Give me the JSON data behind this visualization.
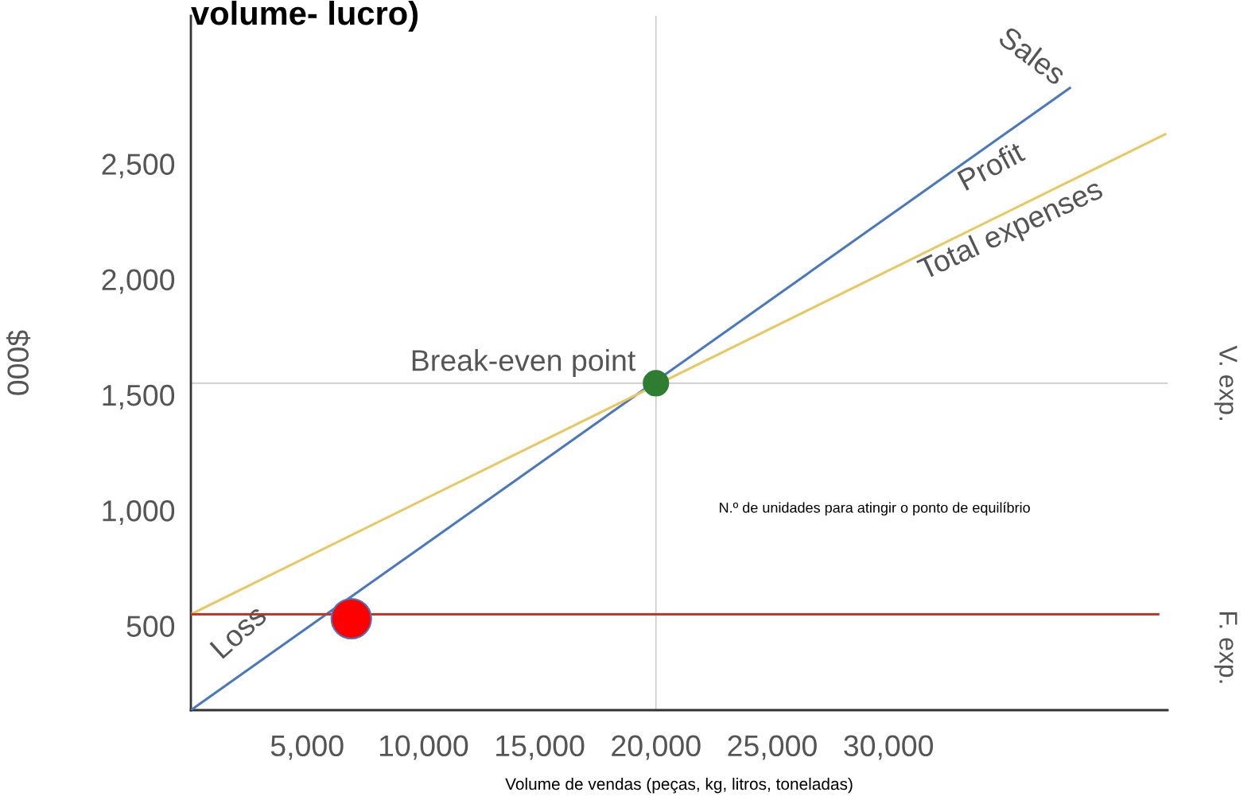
{
  "chart_data": {
    "type": "line",
    "title": "volume- lucro)",
    "xlabel": "Volume de vendas (peças, kg, litros, toneladas)",
    "ylabel": "000$",
    "xlim": [
      0,
      42000
    ],
    "ylim": [
      135,
      3140
    ],
    "xticks": [
      {
        "value": 5000,
        "label": "5,000"
      },
      {
        "value": 10000,
        "label": "10,000"
      },
      {
        "value": 15000,
        "label": "15,000"
      },
      {
        "value": 20000,
        "label": "20,000"
      },
      {
        "value": 25000,
        "label": "25,000"
      },
      {
        "value": 30000,
        "label": "30,000"
      }
    ],
    "yticks": [
      {
        "value": 500,
        "label": "500"
      },
      {
        "value": 1000,
        "label": "1,000"
      },
      {
        "value": 1500,
        "label": "1,500"
      },
      {
        "value": 2000,
        "label": "2,000"
      },
      {
        "value": 2500,
        "label": "2,500"
      }
    ],
    "grid": false,
    "line_style": "solid",
    "series": [
      {
        "color": "#4a78c0",
        "marker": "none",
        "x": [
          0,
          37800
        ],
        "values": [
          135,
          2828
        ]
      },
      {
        "color": "#e8c860",
        "marker": "none",
        "x": [
          0,
          41900
        ],
        "values": [
          550,
          2628
        ]
      },
      {
        "color": "#c0392b",
        "marker": "none",
        "x": [
          0,
          41600
        ],
        "values": [
          550,
          550
        ]
      },
      {
        "type": "scatter",
        "marker": "circle",
        "color": "#2e7d32",
        "x": [
          20000
        ],
        "values": [
          1550
        ]
      },
      {
        "type": "scatter",
        "marker": "circle",
        "color": "#ff0000",
        "x": [
          6900
        ],
        "values": [
          531
        ]
      }
    ],
    "ref_lines": [
      {
        "axis": "y",
        "value": 1550,
        "color": "#cccccc"
      },
      {
        "axis": "x",
        "value": 20000,
        "color": "#cccccc"
      }
    ],
    "annotations": [
      "Sales",
      "Profit",
      "Total expenses",
      "Break-even point",
      "Loss",
      "N.º de unidades para atingir o ponto de equilíbrio",
      "V. exp.",
      "F. exp."
    ]
  }
}
